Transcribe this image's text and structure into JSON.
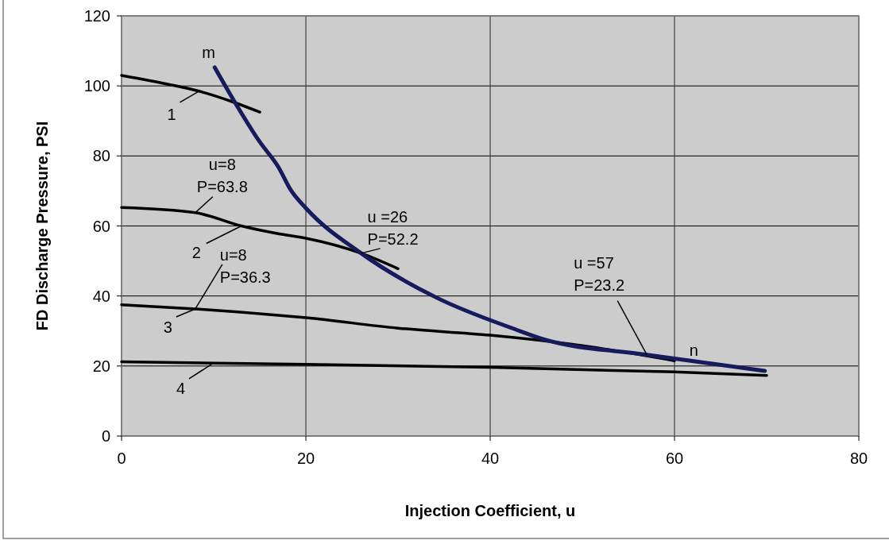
{
  "chart_data": {
    "type": "line",
    "xlabel": "Injection Coefficient, u",
    "ylabel": "FD Discharge Pressure, PSI",
    "xlim": [
      0,
      80
    ],
    "ylim": [
      0,
      120
    ],
    "xticks": [
      0,
      20,
      40,
      60,
      80
    ],
    "yticks": [
      0,
      20,
      40,
      60,
      80,
      100,
      120
    ],
    "grid": true,
    "marker": "none",
    "line_style": "solid",
    "series": [
      {
        "color": "#000000",
        "x": [
          0,
          5,
          8.4,
          12,
          15
        ],
        "values": [
          103,
          100.5,
          98.5,
          95.5,
          92.5
        ]
      },
      {
        "color": "#000000",
        "x": [
          0,
          8,
          13,
          17,
          20,
          26,
          30
        ],
        "values": [
          65.3,
          63.8,
          60,
          57.8,
          56.5,
          52.2,
          47.8
        ]
      },
      {
        "color": "#000000",
        "x": [
          0,
          8,
          17,
          20,
          30,
          40,
          50,
          60
        ],
        "values": [
          37.5,
          36.3,
          34.5,
          33.8,
          30.8,
          28.8,
          25.8,
          21.5
        ]
      },
      {
        "color": "#000000",
        "x": [
          0,
          20,
          40,
          60,
          70
        ],
        "values": [
          21.2,
          20.5,
          19.6,
          18.3,
          17.3
        ]
      },
      {
        "color": "#151b5c",
        "x": [
          10.1,
          12.1,
          15,
          17,
          18.4,
          20,
          26,
          34.2,
          42.8,
          45.7,
          57,
          69.8
        ],
        "values": [
          105.3,
          96.2,
          84,
          76.9,
          70.1,
          65.1,
          52.2,
          39.5,
          30.4,
          27.7,
          23.2,
          18.6
        ]
      }
    ],
    "annotations": [
      {
        "text": "1",
        "x": 8.4,
        "y": 98.5
      },
      {
        "text": "2",
        "x": 13,
        "y": 60
      },
      {
        "text": "3",
        "x": 8,
        "y": 36.3
      },
      {
        "text": "4",
        "x": 10,
        "y": 20.9
      },
      {
        "text": "u=8\nP=63.8",
        "x": 8,
        "y": 63.8
      },
      {
        "text": "u =26\nP=52.2",
        "x": 26,
        "y": 52.2
      },
      {
        "text": "u=8\nP=36.3",
        "x": 8,
        "y": 36.3
      },
      {
        "text": "u =57\nP=23.2",
        "x": 57,
        "y": 23.2
      },
      "m",
      "n"
    ]
  }
}
